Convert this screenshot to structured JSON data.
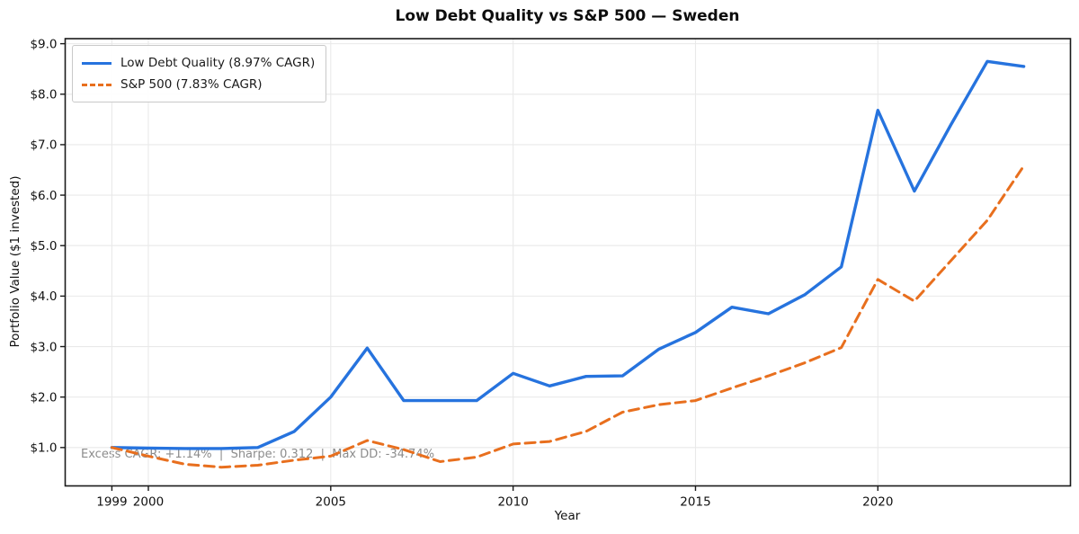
{
  "window": {
    "title": "Low Debt Quality vs S&P 500 — Sweden"
  },
  "chart_data": {
    "type": "line",
    "title": "Low Debt Quality vs S&P 500 — Sweden",
    "xlabel": "Year",
    "ylabel": "Portfolio Value ($1 invested)",
    "x": [
      1999,
      2000,
      2001,
      2002,
      2003,
      2004,
      2005,
      2006,
      2007,
      2008,
      2009,
      2010,
      2011,
      2012,
      2013,
      2014,
      2015,
      2016,
      2017,
      2018,
      2019,
      2020,
      2021,
      2022,
      2023,
      2024
    ],
    "series": [
      {
        "name": "Low Debt Quality (8.97% CAGR)",
        "color": "#2673de",
        "line_style": "solid",
        "line_width": 3.4,
        "values": [
          1.0,
          0.99,
          0.98,
          0.98,
          1.0,
          1.32,
          2.0,
          2.97,
          1.93,
          1.93,
          1.93,
          2.47,
          2.22,
          2.41,
          2.42,
          2.95,
          3.28,
          3.78,
          3.65,
          4.03,
          4.58,
          7.68,
          6.08,
          7.39,
          8.65,
          8.55
        ]
      },
      {
        "name": "S&P 500 (7.83% CAGR)",
        "color": "#e86f1e",
        "line_style": "dashed",
        "line_width": 3,
        "values": [
          1.0,
          0.83,
          0.67,
          0.61,
          0.65,
          0.75,
          0.83,
          1.14,
          0.96,
          0.72,
          0.81,
          1.07,
          1.12,
          1.32,
          1.7,
          1.85,
          1.93,
          2.18,
          2.42,
          2.68,
          2.98,
          4.33,
          3.9,
          4.7,
          5.5,
          6.58
        ]
      }
    ],
    "xticks": {
      "values": [
        1999,
        2000,
        2005,
        2010,
        2015,
        2020
      ],
      "labels": [
        "1999",
        "2000",
        "2005",
        "2010",
        "2015",
        "2020"
      ]
    },
    "yticks": {
      "values": [
        1,
        2,
        3,
        4,
        5,
        6,
        7,
        8,
        9
      ],
      "labels": [
        "$1.0",
        "$2.0",
        "$3.0",
        "$4.0",
        "$5.0",
        "$6.0",
        "$7.0",
        "$8.0",
        "$9.0"
      ]
    },
    "xlim": [
      1997.72,
      2025.28
    ],
    "ylim": [
      0.24,
      9.1
    ],
    "grid": true,
    "grid_color": "#e9e9e9",
    "legend_position": "upper-left",
    "annotation": "Excess CAGR: +1.14%  |  Sharpe: 0.312  |  Max DD: -34.74%"
  }
}
